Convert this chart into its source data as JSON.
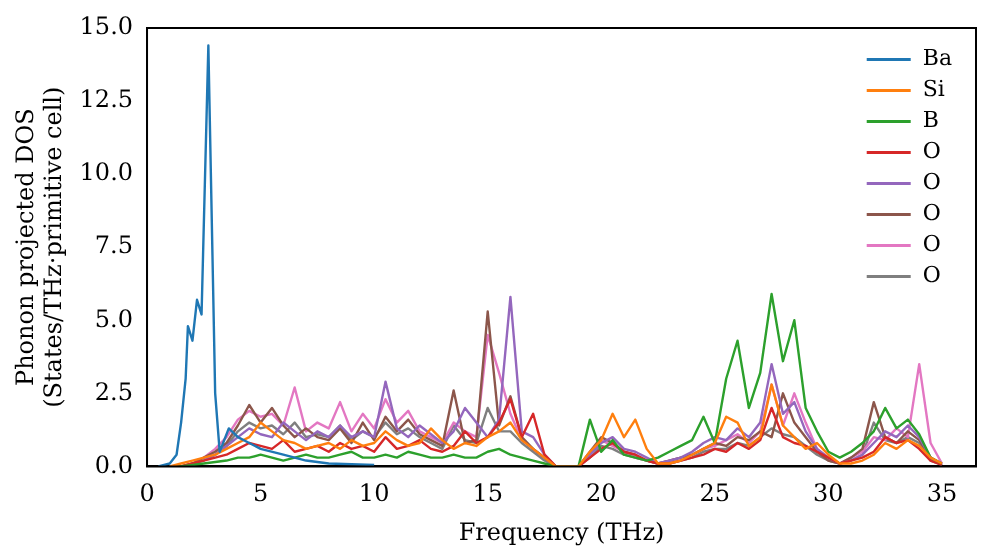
{
  "chart_data": {
    "type": "line",
    "xlabel": "Frequency (THz)",
    "ylabel": "Phonon projected DOS\n(States/THz·primitive cell)",
    "x": [
      1,
      1.5,
      2,
      2.5,
      3,
      3.5,
      4,
      4.5,
      5,
      5.5,
      6,
      6.5,
      7,
      7.5,
      8,
      8.5,
      9,
      9.5,
      10,
      10.5,
      11,
      11.5,
      12,
      12.5,
      13,
      13.5,
      14,
      14.5,
      15,
      15.5,
      16,
      16.5,
      17,
      17.5,
      18,
      19,
      19.5,
      20,
      20.5,
      21,
      21.5,
      22,
      22.5,
      23,
      23.5,
      24,
      24.5,
      25,
      25.5,
      26,
      26.5,
      27,
      27.5,
      28,
      28.5,
      29,
      29.5,
      30,
      30.5,
      31,
      31.5,
      32,
      32.5,
      33,
      33.5,
      34,
      34.5,
      35
    ],
    "xlim": [
      0,
      36.5
    ],
    "xticks": [
      0,
      5,
      10,
      15,
      20,
      25,
      30,
      35
    ],
    "ylim": [
      0,
      15
    ],
    "yticks": [
      {
        "value": 0,
        "label": "0.0"
      },
      {
        "value": 2.5,
        "label": "2.5"
      },
      {
        "value": 5,
        "label": "5.0"
      },
      {
        "value": 7.5,
        "label": "7.5"
      },
      {
        "value": 10,
        "label": "10.0"
      },
      {
        "value": 12.5,
        "label": "12.5"
      },
      {
        "value": 15,
        "label": "15.0"
      }
    ],
    "grid": false,
    "legend": "top right",
    "marker": "none",
    "line_style": "solid",
    "series": [
      {
        "name": "Ba",
        "color": "#1f77b4",
        "x": [
          0.5,
          1,
          1.3,
          1.5,
          1.7,
          1.8,
          2.0,
          2.2,
          2.4,
          2.7,
          3.0,
          3.2,
          3.6,
          4,
          4.5,
          5,
          6,
          7,
          8,
          10
        ],
        "values": [
          0,
          0.1,
          0.4,
          1.5,
          3.0,
          4.8,
          4.3,
          5.7,
          5.2,
          14.4,
          2.5,
          0.5,
          1.3,
          1.0,
          0.8,
          0.6,
          0.4,
          0.2,
          0.1,
          0.05
        ]
      },
      {
        "name": "Si",
        "color": "#ff7f0e",
        "values": [
          0,
          0.1,
          0.2,
          0.3,
          0.4,
          0.6,
          0.8,
          1.0,
          1.5,
          1.2,
          0.9,
          0.8,
          0.6,
          0.7,
          0.8,
          0.6,
          0.9,
          0.7,
          0.8,
          1.2,
          0.9,
          0.7,
          0.8,
          1.3,
          0.9,
          0.6,
          0.8,
          0.7,
          1.0,
          1.2,
          1.5,
          0.9,
          0.6,
          0.3,
          0,
          0,
          0.5,
          0.9,
          1.8,
          1.0,
          1.6,
          0.6,
          0.1,
          0.1,
          0.2,
          0.4,
          0.6,
          0.8,
          1.7,
          1.5,
          0.7,
          1.0,
          2.8,
          1.4,
          1.0,
          0.6,
          0.8,
          0.4,
          0.1,
          0.1,
          0.2,
          0.4,
          0.8,
          0.6,
          0.9,
          0.7,
          0.3,
          0.1
        ]
      },
      {
        "name": "B",
        "color": "#2ca02c",
        "values": [
          0,
          0,
          0.05,
          0.1,
          0.15,
          0.2,
          0.3,
          0.3,
          0.4,
          0.3,
          0.2,
          0.3,
          0.4,
          0.3,
          0.3,
          0.4,
          0.5,
          0.3,
          0.3,
          0.4,
          0.3,
          0.5,
          0.4,
          0.3,
          0.3,
          0.4,
          0.3,
          0.3,
          0.5,
          0.6,
          0.4,
          0.3,
          0.2,
          0.1,
          0,
          0,
          1.6,
          0.5,
          0.9,
          0.4,
          0.3,
          0.2,
          0.3,
          0.5,
          0.7,
          0.9,
          1.7,
          0.8,
          3.0,
          4.3,
          2.0,
          3.2,
          5.9,
          3.6,
          5.0,
          2.0,
          1.2,
          0.5,
          0.3,
          0.5,
          0.8,
          1.2,
          2.0,
          1.3,
          1.6,
          1.1,
          0.3,
          0.1
        ]
      },
      {
        "name": "O",
        "color": "#d62728",
        "values": [
          0,
          0,
          0.1,
          0.2,
          0.3,
          0.4,
          0.6,
          0.8,
          0.7,
          0.6,
          0.9,
          0.5,
          0.6,
          0.7,
          0.5,
          0.8,
          0.6,
          0.7,
          0.5,
          1.0,
          0.6,
          0.7,
          0.9,
          0.6,
          0.5,
          0.7,
          1.2,
          0.8,
          1.0,
          1.5,
          2.3,
          1.0,
          1.8,
          0.4,
          0,
          0,
          0.3,
          0.6,
          0.8,
          0.5,
          0.4,
          0.2,
          0.1,
          0.1,
          0.2,
          0.3,
          0.4,
          0.6,
          0.5,
          0.8,
          0.6,
          0.9,
          2.0,
          1.0,
          0.8,
          0.7,
          0.5,
          0.3,
          0.1,
          0.2,
          0.3,
          0.5,
          1.0,
          0.8,
          0.9,
          0.6,
          0.2,
          0.05
        ]
      },
      {
        "name": "O",
        "color": "#9467bd",
        "values": [
          null,
          null,
          null,
          0.2,
          0.4,
          0.7,
          1.0,
          1.3,
          1.1,
          1.0,
          1.5,
          1.2,
          0.9,
          1.2,
          1.0,
          1.4,
          1.0,
          1.2,
          1.0,
          2.9,
          1.3,
          1.0,
          1.4,
          1.1,
          0.8,
          1.2,
          2.0,
          1.5,
          1.0,
          1.6,
          5.8,
          1.2,
          1.0,
          0.4,
          0,
          0,
          0.4,
          0.8,
          1.0,
          0.6,
          0.5,
          0.3,
          0.1,
          0.2,
          0.3,
          0.5,
          0.8,
          1.0,
          0.9,
          1.3,
          1.0,
          1.5,
          3.5,
          1.8,
          2.2,
          1.2,
          0.6,
          0.3,
          0.1,
          0.2,
          0.4,
          0.8,
          1.2,
          1.0,
          1.4,
          1.0,
          0.3,
          0.05
        ]
      },
      {
        "name": "O",
        "color": "#8c564b",
        "values": [
          0,
          0,
          0.1,
          0.3,
          0.5,
          0.8,
          1.4,
          2.1,
          1.5,
          2.0,
          1.4,
          1.0,
          1.3,
          1.0,
          0.9,
          1.3,
          0.8,
          1.5,
          0.9,
          1.7,
          1.2,
          1.6,
          1.1,
          0.9,
          0.7,
          2.6,
          0.8,
          0.9,
          5.3,
          1.4,
          2.4,
          1.0,
          0.6,
          0.3,
          0,
          0,
          0.5,
          1.0,
          0.8,
          0.5,
          0.4,
          0.2,
          0.1,
          0.2,
          0.3,
          0.4,
          0.6,
          0.8,
          0.7,
          1.0,
          0.9,
          1.2,
          1.0,
          2.5,
          1.5,
          1.0,
          0.5,
          0.2,
          0.1,
          0.3,
          0.6,
          2.2,
          1.0,
          0.8,
          1.2,
          0.9,
          0.3,
          0.05
        ]
      },
      {
        "name": "O",
        "color": "#e377c2",
        "values": [
          null,
          null,
          null,
          0.3,
          0.6,
          1.0,
          1.6,
          1.9,
          1.7,
          1.8,
          1.4,
          2.7,
          1.2,
          1.5,
          1.3,
          2.2,
          1.2,
          1.8,
          1.3,
          2.3,
          1.5,
          1.9,
          1.2,
          1.0,
          0.8,
          1.5,
          1.2,
          1.0,
          4.5,
          3.2,
          1.8,
          0.9,
          0.6,
          0.3,
          0,
          0,
          0.4,
          0.9,
          0.7,
          0.5,
          0.3,
          0.2,
          0.1,
          0.2,
          0.3,
          0.4,
          0.6,
          0.7,
          0.9,
          1.1,
          0.8,
          1.2,
          2.8,
          1.4,
          2.5,
          1.5,
          0.6,
          0.3,
          0.1,
          0.3,
          0.5,
          1.0,
          0.9,
          1.3,
          1.0,
          3.5,
          0.8,
          0.1
        ]
      },
      {
        "name": "O",
        "color": "#7f7f7f",
        "values": [
          0,
          0,
          0.1,
          0.2,
          0.4,
          0.7,
          1.2,
          1.5,
          1.3,
          1.4,
          1.1,
          1.5,
          1.0,
          1.1,
          1.0,
          1.4,
          0.9,
          1.2,
          1.0,
          1.5,
          1.1,
          1.3,
          1.0,
          0.8,
          0.6,
          1.4,
          0.9,
          0.8,
          2.0,
          1.2,
          1.2,
          0.8,
          0.5,
          0.2,
          0,
          0,
          0.3,
          0.7,
          0.6,
          0.4,
          0.3,
          0.2,
          0.1,
          0.1,
          0.2,
          0.3,
          0.5,
          0.6,
          0.6,
          0.8,
          0.7,
          1.0,
          1.3,
          1.1,
          1.0,
          0.7,
          0.4,
          0.2,
          0.1,
          0.2,
          0.4,
          1.5,
          0.9,
          0.8,
          1.0,
          0.8,
          0.2,
          0.05
        ]
      }
    ]
  }
}
